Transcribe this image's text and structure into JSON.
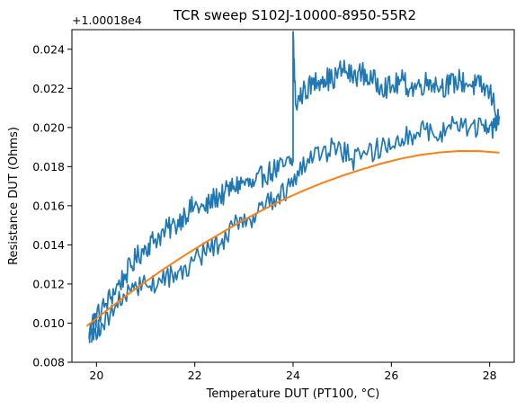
{
  "chart_data": {
    "type": "line",
    "title": "TCR sweep S102J-10000-8950-55R2",
    "xlabel": "Temperature DUT (PT100, °C)",
    "ylabel": "Resistance DUT (Ohms)",
    "offset_label": "+1.00018e4",
    "xlim": [
      19.5,
      28.5
    ],
    "ylim": [
      0.008,
      0.025
    ],
    "xticks": [
      20,
      22,
      24,
      26,
      28
    ],
    "xtick_labels": [
      "20",
      "22",
      "24",
      "26",
      "28"
    ],
    "yticks": [
      0.008,
      0.01,
      0.012,
      0.014,
      0.016,
      0.018,
      0.02,
      0.022,
      0.024
    ],
    "ytick_labels": [
      "0.008",
      "0.010",
      "0.012",
      "0.014",
      "0.016",
      "0.018",
      "0.020",
      "0.022",
      "0.024"
    ],
    "grid": false,
    "colors": {
      "measured": "#1f77b4",
      "fit": "#ff7f0e"
    },
    "series": [
      {
        "key": "measured",
        "style": "noisy",
        "points": [
          [
            19.85,
            0.0092
          ],
          [
            19.9,
            0.01
          ],
          [
            20.0,
            0.0103
          ],
          [
            20.2,
            0.011
          ],
          [
            20.4,
            0.0118
          ],
          [
            20.6,
            0.0125
          ],
          [
            20.8,
            0.0133
          ],
          [
            21.0,
            0.0139
          ],
          [
            21.2,
            0.0143
          ],
          [
            21.4,
            0.0147
          ],
          [
            21.6,
            0.015
          ],
          [
            21.8,
            0.0156
          ],
          [
            22.0,
            0.016
          ],
          [
            22.2,
            0.0158
          ],
          [
            22.4,
            0.0164
          ],
          [
            22.6,
            0.0166
          ],
          [
            22.8,
            0.017
          ],
          [
            23.0,
            0.0172
          ],
          [
            23.2,
            0.017
          ],
          [
            23.4,
            0.0176
          ],
          [
            23.6,
            0.0178
          ],
          [
            23.8,
            0.018
          ],
          [
            24.0,
            0.0183
          ],
          [
            24.0,
            0.0249
          ],
          [
            24.05,
            0.0212
          ],
          [
            24.2,
            0.0218
          ],
          [
            24.4,
            0.0222
          ],
          [
            24.6,
            0.0226
          ],
          [
            24.8,
            0.0224
          ],
          [
            25.0,
            0.023
          ],
          [
            25.2,
            0.0226
          ],
          [
            25.4,
            0.0228
          ],
          [
            25.6,
            0.0224
          ],
          [
            25.8,
            0.0222
          ],
          [
            26.0,
            0.022
          ],
          [
            26.2,
            0.0224
          ],
          [
            26.4,
            0.022
          ],
          [
            26.6,
            0.0222
          ],
          [
            26.8,
            0.0224
          ],
          [
            27.0,
            0.0221
          ],
          [
            27.2,
            0.0222
          ],
          [
            27.4,
            0.0224
          ],
          [
            27.6,
            0.0222
          ],
          [
            27.8,
            0.0221
          ],
          [
            28.0,
            0.0218
          ],
          [
            28.2,
            0.0205
          ],
          [
            28.1,
            0.02
          ],
          [
            27.9,
            0.0198
          ],
          [
            27.6,
            0.02
          ],
          [
            27.3,
            0.0202
          ],
          [
            27.0,
            0.0198
          ],
          [
            26.7,
            0.0199
          ],
          [
            26.4,
            0.0196
          ],
          [
            26.1,
            0.0194
          ],
          [
            25.8,
            0.019
          ],
          [
            25.5,
            0.0186
          ],
          [
            25.2,
            0.0184
          ],
          [
            24.9,
            0.0189
          ],
          [
            24.6,
            0.0188
          ],
          [
            24.3,
            0.0184
          ],
          [
            24.0,
            0.017
          ],
          [
            23.7,
            0.0166
          ],
          [
            23.4,
            0.0158
          ],
          [
            23.1,
            0.0154
          ],
          [
            22.8,
            0.015
          ],
          [
            22.5,
            0.014
          ],
          [
            22.2,
            0.0136
          ],
          [
            21.9,
            0.013
          ],
          [
            21.6,
            0.0126
          ],
          [
            21.3,
            0.0122
          ],
          [
            21.0,
            0.012
          ],
          [
            20.7,
            0.0116
          ],
          [
            20.4,
            0.011
          ],
          [
            20.1,
            0.01
          ],
          [
            19.9,
            0.009
          ]
        ]
      },
      {
        "key": "fit",
        "style": "smooth",
        "points": [
          [
            19.8,
            0.00985
          ],
          [
            20.2,
            0.01063
          ],
          [
            20.6,
            0.0114
          ],
          [
            21.0,
            0.01212
          ],
          [
            21.4,
            0.01282
          ],
          [
            21.8,
            0.01347
          ],
          [
            22.2,
            0.0141
          ],
          [
            22.6,
            0.0147
          ],
          [
            23.0,
            0.01527
          ],
          [
            23.4,
            0.01581
          ],
          [
            23.8,
            0.01631
          ],
          [
            24.2,
            0.01676
          ],
          [
            24.6,
            0.01717
          ],
          [
            25.0,
            0.01753
          ],
          [
            25.4,
            0.01786
          ],
          [
            25.8,
            0.01816
          ],
          [
            26.2,
            0.01841
          ],
          [
            26.6,
            0.0186
          ],
          [
            27.0,
            0.01873
          ],
          [
            27.4,
            0.0188
          ],
          [
            27.8,
            0.01879
          ],
          [
            28.2,
            0.01871
          ]
        ]
      }
    ]
  }
}
